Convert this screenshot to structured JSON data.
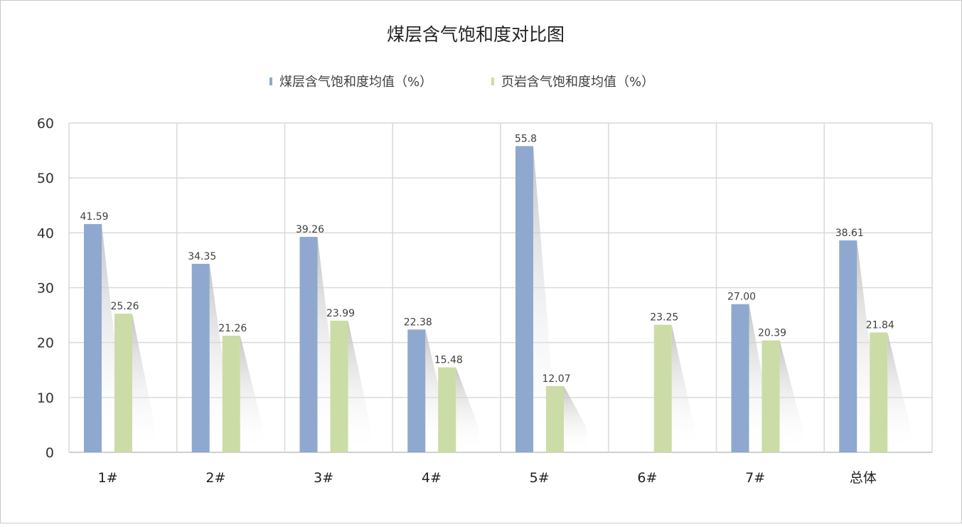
{
  "chart_data": {
    "type": "bar",
    "title": "煤层含气饱和度对比图",
    "categories": [
      "1#",
      "2#",
      "3#",
      "4#",
      "5#",
      "6#",
      "7#",
      "总体"
    ],
    "series": [
      {
        "name": "煤层含气饱和度均值（%）",
        "color": "#8FA8CF",
        "values": [
          41.59,
          34.35,
          39.26,
          22.38,
          55.8,
          null,
          27.0,
          38.61
        ],
        "labels": [
          "41.59",
          "34.35",
          "39.26",
          "22.38",
          "55.8",
          "",
          "27.00",
          "38.61"
        ]
      },
      {
        "name": "页岩含气饱和度均值（%）",
        "color": "#CBDCA6",
        "values": [
          25.26,
          21.26,
          23.99,
          15.48,
          12.07,
          23.25,
          20.39,
          21.84
        ],
        "labels": [
          "25.26",
          "21.26",
          "23.99",
          "15.48",
          "12.07",
          "23.25",
          "20.39",
          "21.84"
        ]
      }
    ],
    "ylim": [
      0,
      60
    ],
    "yticks": [
      0,
      10,
      20,
      30,
      40,
      50,
      60
    ],
    "xlabel": "",
    "ylabel": "",
    "grid": true,
    "legend_position": "top"
  }
}
